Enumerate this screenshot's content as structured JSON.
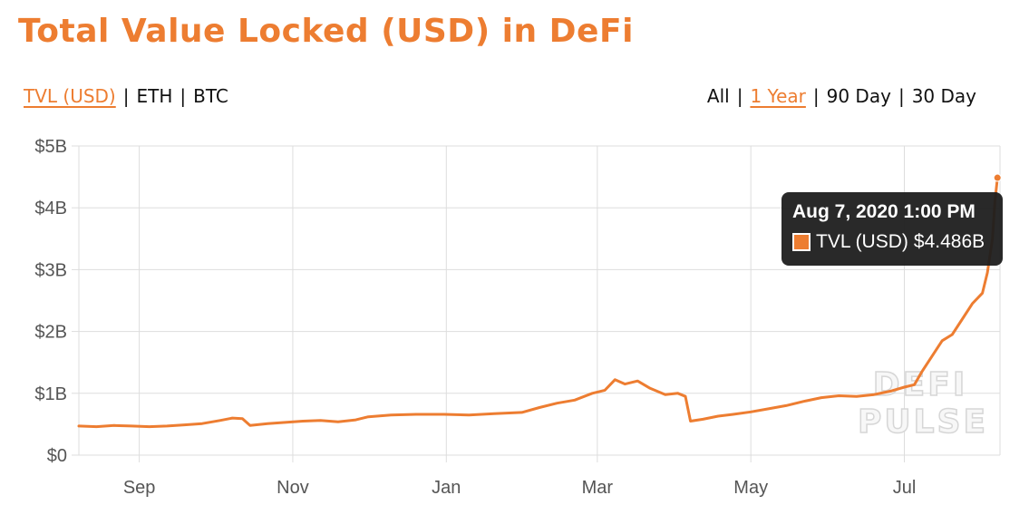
{
  "title": "Total Value Locked (USD) in DeFi",
  "metric_toggle": {
    "options": [
      "TVL (USD)",
      "ETH",
      "BTC"
    ],
    "active": "TVL (USD)"
  },
  "range_toggle": {
    "options": [
      "All",
      "1 Year",
      "90 Day",
      "30 Day"
    ],
    "active": "1 Year"
  },
  "colors": {
    "accent": "#ED7D31",
    "grid": "#dddddd"
  },
  "watermark": {
    "line1": "DEFI",
    "line2": "PULSE"
  },
  "tooltip": {
    "date": "Aug 7, 2020 1:00 PM",
    "label": "TVL (USD)",
    "value": "$4.486B"
  },
  "chart_data": {
    "type": "line",
    "x_unit": "date",
    "xlim": [
      "2019-08-08",
      "2020-08-08"
    ],
    "ylim": [
      0,
      5
    ],
    "y_unit": "billion USD",
    "y_ticks": [
      "$0",
      "$1B",
      "$2B",
      "$3B",
      "$4B",
      "$5B"
    ],
    "x_ticks": [
      {
        "label": "Sep",
        "date": "2019-09-01"
      },
      {
        "label": "Nov",
        "date": "2019-11-01"
      },
      {
        "label": "Jan",
        "date": "2020-01-01"
      },
      {
        "label": "Mar",
        "date": "2020-03-01"
      },
      {
        "label": "May",
        "date": "2020-05-01"
      },
      {
        "label": "Jul",
        "date": "2020-07-01"
      }
    ],
    "grid": true,
    "series": [
      {
        "name": "TVL (USD)",
        "points": [
          [
            "2019-08-08",
            0.47
          ],
          [
            "2019-08-15",
            0.46
          ],
          [
            "2019-08-22",
            0.48
          ],
          [
            "2019-08-29",
            0.47
          ],
          [
            "2019-09-05",
            0.46
          ],
          [
            "2019-09-12",
            0.47
          ],
          [
            "2019-09-19",
            0.49
          ],
          [
            "2019-09-26",
            0.51
          ],
          [
            "2019-10-03",
            0.56
          ],
          [
            "2019-10-08",
            0.6
          ],
          [
            "2019-10-12",
            0.59
          ],
          [
            "2019-10-15",
            0.48
          ],
          [
            "2019-10-22",
            0.51
          ],
          [
            "2019-10-29",
            0.53
          ],
          [
            "2019-11-05",
            0.55
          ],
          [
            "2019-11-12",
            0.56
          ],
          [
            "2019-11-19",
            0.54
          ],
          [
            "2019-11-26",
            0.57
          ],
          [
            "2019-12-01",
            0.62
          ],
          [
            "2019-12-10",
            0.65
          ],
          [
            "2019-12-20",
            0.66
          ],
          [
            "2019-12-31",
            0.66
          ],
          [
            "2020-01-10",
            0.65
          ],
          [
            "2020-01-20",
            0.67
          ],
          [
            "2020-01-31",
            0.69
          ],
          [
            "2020-02-07",
            0.77
          ],
          [
            "2020-02-14",
            0.84
          ],
          [
            "2020-02-21",
            0.89
          ],
          [
            "2020-02-28",
            1.0
          ],
          [
            "2020-03-04",
            1.05
          ],
          [
            "2020-03-08",
            1.22
          ],
          [
            "2020-03-12",
            1.15
          ],
          [
            "2020-03-17",
            1.2
          ],
          [
            "2020-03-22",
            1.08
          ],
          [
            "2020-03-28",
            0.98
          ],
          [
            "2020-04-02",
            1.0
          ],
          [
            "2020-04-05",
            0.95
          ],
          [
            "2020-04-07",
            0.55
          ],
          [
            "2020-04-12",
            0.58
          ],
          [
            "2020-04-18",
            0.63
          ],
          [
            "2020-04-24",
            0.66
          ],
          [
            "2020-05-01",
            0.7
          ],
          [
            "2020-05-08",
            0.75
          ],
          [
            "2020-05-15",
            0.8
          ],
          [
            "2020-05-22",
            0.87
          ],
          [
            "2020-05-29",
            0.93
          ],
          [
            "2020-06-05",
            0.96
          ],
          [
            "2020-06-12",
            0.95
          ],
          [
            "2020-06-19",
            0.98
          ],
          [
            "2020-06-26",
            1.04
          ],
          [
            "2020-07-01",
            1.1
          ],
          [
            "2020-07-05",
            1.14
          ],
          [
            "2020-07-08",
            1.35
          ],
          [
            "2020-07-12",
            1.6
          ],
          [
            "2020-07-16",
            1.85
          ],
          [
            "2020-07-20",
            1.95
          ],
          [
            "2020-07-24",
            2.2
          ],
          [
            "2020-07-28",
            2.45
          ],
          [
            "2020-08-01",
            2.62
          ],
          [
            "2020-08-03",
            2.95
          ],
          [
            "2020-08-05",
            3.5
          ],
          [
            "2020-08-06",
            4.1
          ],
          [
            "2020-08-07",
            4.486
          ]
        ]
      }
    ]
  }
}
